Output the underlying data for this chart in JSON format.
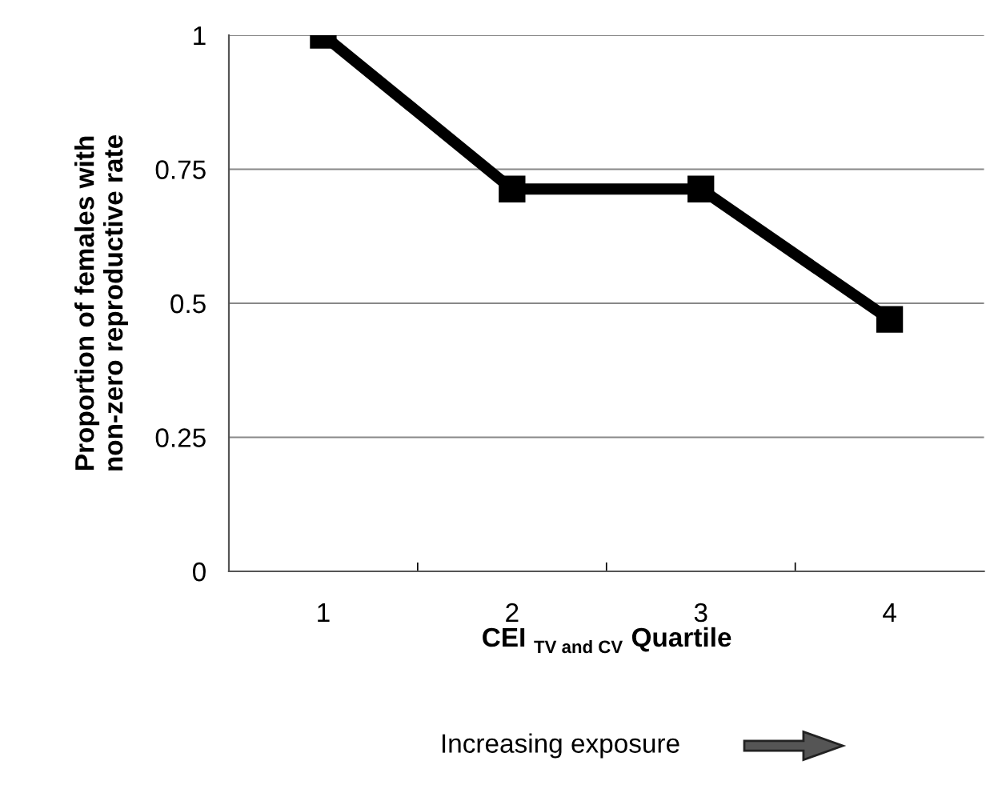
{
  "chart_data": {
    "type": "line",
    "xlabel": "CEI $_{TV and CV}$ Quartile",
    "ylabel": "Proportion of females with\nnon-zero reproductive rate",
    "categories": [
      "1",
      "2",
      "3",
      "4"
    ],
    "series": [
      {
        "color": "#000000",
        "values": [
          1,
          0.713,
          0.713,
          0.47
        ]
      }
    ],
    "ylim": [
      0,
      1
    ],
    "yticks": [
      0,
      0.25,
      0.5,
      0.75,
      1
    ],
    "grid": "y",
    "marker": "square",
    "line_style": "solid",
    "legend": false,
    "annotations": [
      "Increasing exposure"
    ]
  }
}
